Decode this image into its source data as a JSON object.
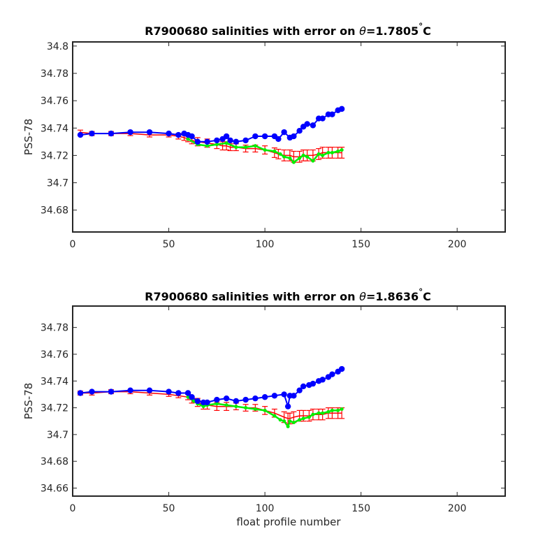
{
  "chart_data": [
    {
      "type": "scatter",
      "title_prefix": "R7900680 salinities with error on ",
      "title_theta": "θ",
      "title_value": "=1.7805",
      "title_deg": "°",
      "title_unit": "C",
      "xlabel": "",
      "ylabel": "PSS-78",
      "xlim": [
        0,
        225
      ],
      "ylim": [
        34.664,
        34.803
      ],
      "xticks": [
        0,
        50,
        100,
        150,
        200
      ],
      "xtick_labels": [
        "0",
        "50",
        "100",
        "150",
        "200"
      ],
      "yticks": [
        34.68,
        34.7,
        34.72,
        34.74,
        34.76,
        34.78,
        34.8
      ],
      "ytick_labels": [
        "34.68",
        "34.7",
        "34.72",
        "34.74",
        "34.76",
        "34.78",
        "34.8"
      ],
      "float_salinity": {
        "color": "#0000ff",
        "x": [
          4,
          10,
          20,
          30,
          40,
          50,
          55,
          58,
          60,
          62,
          65,
          70,
          75,
          78,
          80,
          82,
          85,
          90,
          95,
          100,
          105,
          107,
          110,
          113,
          115,
          118,
          120,
          122,
          125,
          128,
          130,
          133,
          135,
          138,
          140
        ],
        "y": [
          34.735,
          34.736,
          34.736,
          34.737,
          34.737,
          34.736,
          34.735,
          34.736,
          34.735,
          34.734,
          34.73,
          34.73,
          34.731,
          34.732,
          34.734,
          34.731,
          34.73,
          34.731,
          34.734,
          34.734,
          34.734,
          34.732,
          34.737,
          34.733,
          34.734,
          34.738,
          34.741,
          34.743,
          34.742,
          34.747,
          34.747,
          34.75,
          34.75,
          34.753,
          34.754
        ]
      },
      "mapped_salinity": {
        "color": "#ff0000",
        "x": [
          4,
          10,
          20,
          30,
          40,
          50,
          55,
          58,
          60,
          62,
          65,
          70,
          75,
          78,
          80,
          82,
          85,
          90,
          95,
          100,
          105,
          107,
          110,
          113,
          115,
          118,
          120,
          122,
          125,
          128,
          130,
          133,
          135,
          138,
          140
        ],
        "y": [
          34.737,
          34.736,
          34.736,
          34.736,
          34.735,
          34.735,
          34.734,
          34.733,
          34.732,
          34.731,
          34.73,
          34.729,
          34.728,
          34.727,
          34.727,
          34.726,
          34.726,
          34.725,
          34.725,
          34.724,
          34.722,
          34.721,
          34.72,
          34.72,
          34.719,
          34.719,
          34.72,
          34.72,
          34.72,
          34.721,
          34.722,
          34.722,
          34.722,
          34.722,
          34.722
        ],
        "error": [
          0.0015,
          0.0015,
          0.0015,
          0.0015,
          0.0015,
          0.0015,
          0.002,
          0.002,
          0.002,
          0.0025,
          0.003,
          0.003,
          0.003,
          0.003,
          0.003,
          0.0025,
          0.0025,
          0.0025,
          0.0025,
          0.003,
          0.0035,
          0.0035,
          0.004,
          0.004,
          0.004,
          0.004,
          0.004,
          0.004,
          0.004,
          0.004,
          0.004,
          0.004,
          0.004,
          0.004,
          0.004
        ]
      },
      "calibrated_salinity": {
        "color": "#00ee00",
        "x": [
          60,
          65,
          70,
          75,
          80,
          85,
          90,
          95,
          100,
          105,
          108,
          110,
          113,
          115,
          118,
          120,
          122,
          125,
          128,
          130,
          133,
          135,
          138,
          140
        ],
        "y": [
          34.732,
          34.728,
          34.727,
          34.728,
          34.729,
          34.726,
          34.726,
          34.727,
          34.724,
          34.723,
          34.721,
          34.719,
          34.718,
          34.715,
          34.718,
          34.72,
          34.719,
          34.716,
          34.721,
          34.72,
          34.722,
          34.722,
          34.723,
          34.724
        ]
      }
    },
    {
      "type": "scatter",
      "title_prefix": "R7900680 salinities with error on ",
      "title_theta": "θ",
      "title_value": "=1.8636",
      "title_deg": "°",
      "title_unit": "C",
      "xlabel": "float profile number",
      "ylabel": "PSS-78",
      "xlim": [
        0,
        225
      ],
      "ylim": [
        34.654,
        34.796
      ],
      "xticks": [
        0,
        50,
        100,
        150,
        200
      ],
      "xtick_labels": [
        "0",
        "50",
        "100",
        "150",
        "200"
      ],
      "yticks": [
        34.66,
        34.68,
        34.7,
        34.72,
        34.74,
        34.76,
        34.78
      ],
      "ytick_labels": [
        "34.66",
        "34.68",
        "34.7",
        "34.72",
        "34.74",
        "34.76",
        "34.78"
      ],
      "float_salinity": {
        "color": "#0000ff",
        "x": [
          4,
          10,
          20,
          30,
          40,
          50,
          55,
          60,
          62,
          65,
          68,
          70,
          75,
          80,
          85,
          90,
          95,
          100,
          105,
          110,
          112,
          113,
          115,
          118,
          120,
          123,
          125,
          128,
          130,
          133,
          135,
          138,
          140
        ],
        "y": [
          34.731,
          34.732,
          34.732,
          34.733,
          34.733,
          34.732,
          34.731,
          34.731,
          34.728,
          34.725,
          34.724,
          34.724,
          34.726,
          34.727,
          34.725,
          34.726,
          34.727,
          34.728,
          34.729,
          34.73,
          34.721,
          34.729,
          34.729,
          34.733,
          34.736,
          34.737,
          34.738,
          34.74,
          34.741,
          34.743,
          34.745,
          34.747,
          34.749
        ]
      },
      "mapped_salinity": {
        "color": "#ff0000",
        "x": [
          4,
          10,
          20,
          30,
          40,
          50,
          55,
          60,
          62,
          65,
          68,
          70,
          75,
          80,
          85,
          90,
          95,
          100,
          105,
          110,
          112,
          113,
          115,
          118,
          120,
          123,
          125,
          128,
          130,
          133,
          135,
          138,
          140
        ],
        "y": [
          34.731,
          34.731,
          34.732,
          34.732,
          34.731,
          34.73,
          34.729,
          34.728,
          34.726,
          34.724,
          34.722,
          34.722,
          34.721,
          34.721,
          34.721,
          34.72,
          34.72,
          34.718,
          34.716,
          34.713,
          34.712,
          34.712,
          34.713,
          34.714,
          34.714,
          34.714,
          34.715,
          34.715,
          34.715,
          34.716,
          34.716,
          34.716,
          34.716
        ],
        "error": [
          0.0015,
          0.0015,
          0.0015,
          0.0015,
          0.0015,
          0.0015,
          0.0015,
          0.002,
          0.0025,
          0.003,
          0.003,
          0.003,
          0.003,
          0.003,
          0.0025,
          0.0025,
          0.0025,
          0.003,
          0.003,
          0.004,
          0.004,
          0.004,
          0.004,
          0.004,
          0.004,
          0.004,
          0.004,
          0.004,
          0.004,
          0.004,
          0.004,
          0.004,
          0.004
        ]
      },
      "calibrated_salinity": {
        "color": "#00ee00",
        "x": [
          60,
          63,
          65,
          68,
          70,
          75,
          80,
          85,
          90,
          95,
          100,
          105,
          108,
          110,
          112,
          113,
          115,
          118,
          120,
          123,
          125,
          128,
          130,
          133,
          135,
          138,
          140
        ],
        "y": [
          34.728,
          34.725,
          34.723,
          34.721,
          34.722,
          34.723,
          34.722,
          34.721,
          34.72,
          34.719,
          34.718,
          34.714,
          34.711,
          34.71,
          34.706,
          34.71,
          34.709,
          34.711,
          34.712,
          34.713,
          34.715,
          34.716,
          34.716,
          34.717,
          34.718,
          34.718,
          34.719
        ]
      }
    }
  ]
}
